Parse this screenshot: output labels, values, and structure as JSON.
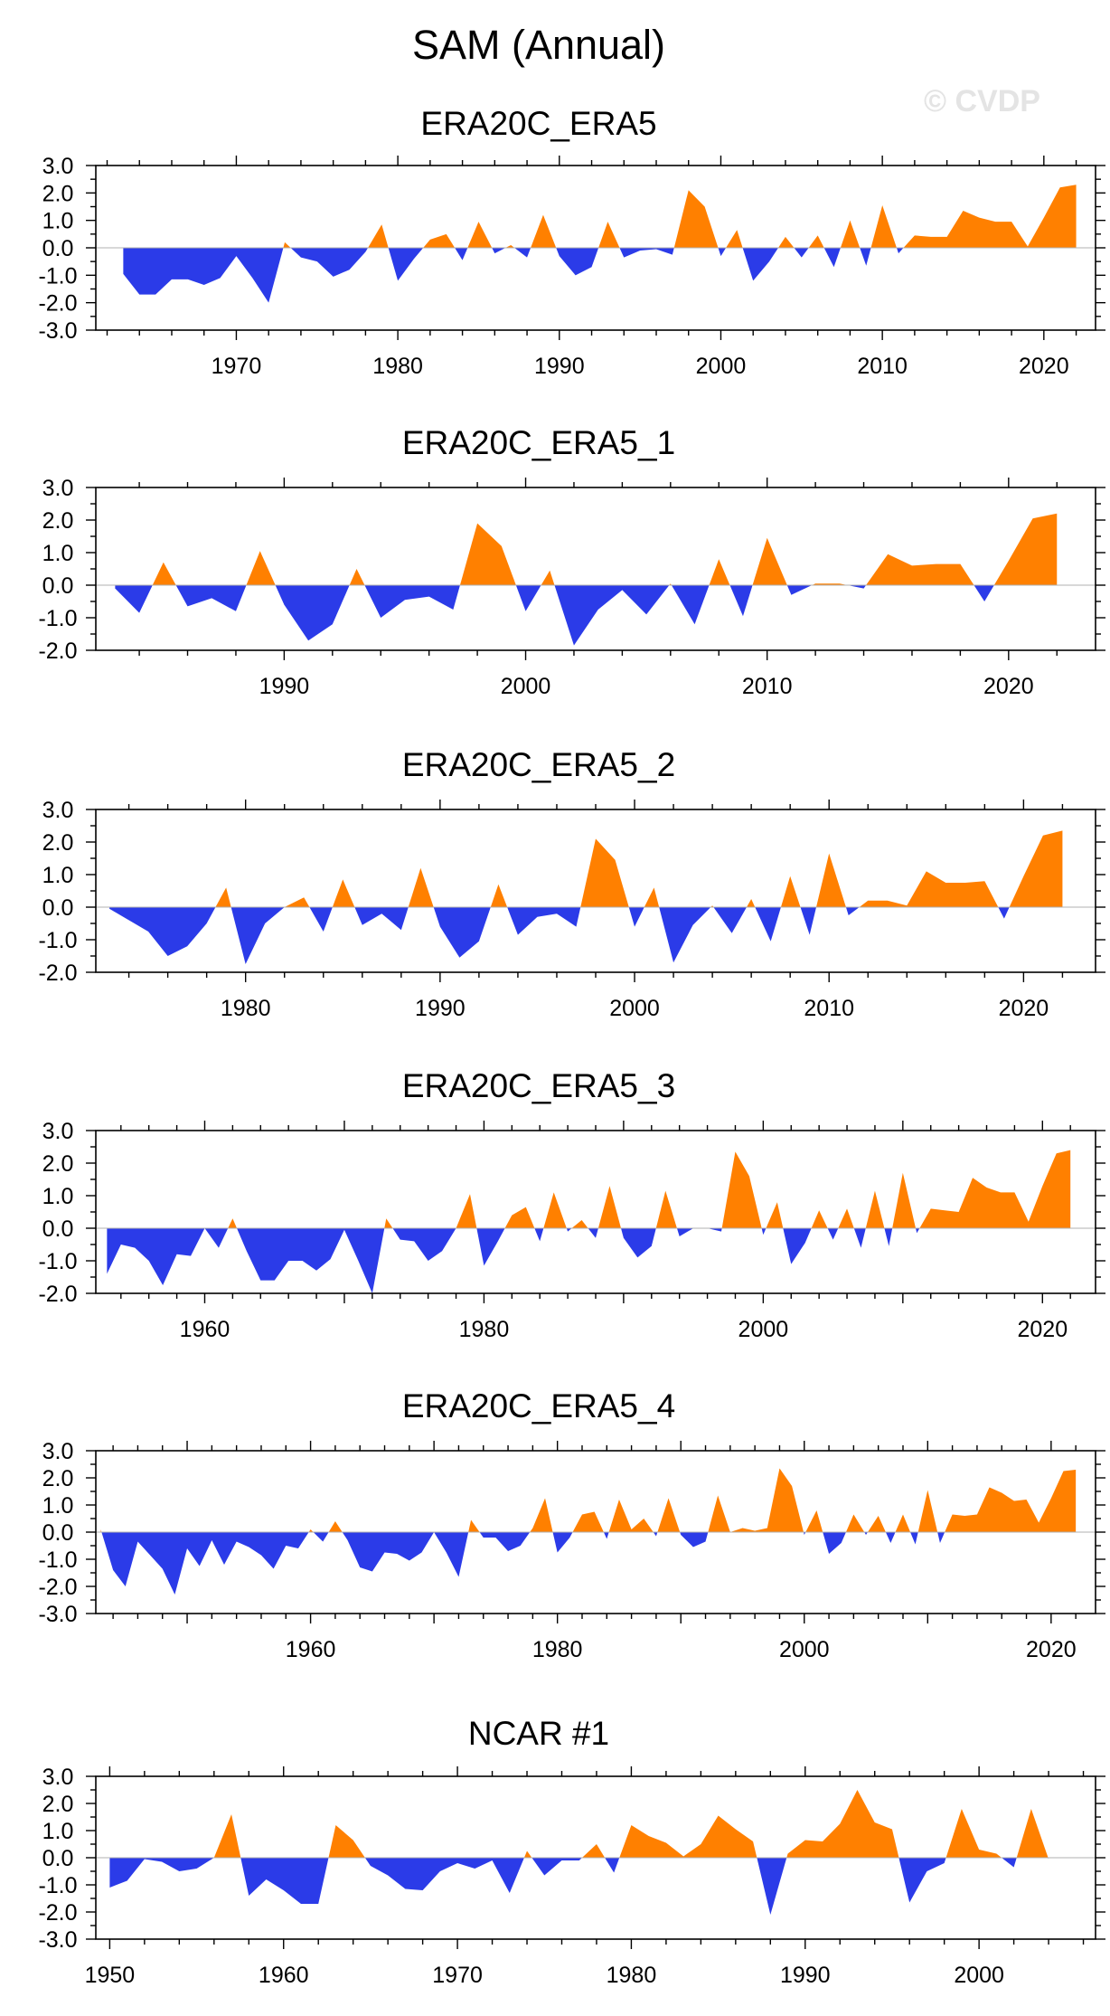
{
  "title": "SAM (Annual)",
  "watermark": "© CVDP",
  "colors": {
    "positive": "#FF8000",
    "negative": "#2B3BE8",
    "axis": "#000000"
  },
  "chart_data": [
    {
      "type": "area",
      "title": "ERA20C_ERA5",
      "x_start": 1963,
      "xlim": [
        1961.3,
        2023.2
      ],
      "ylim": [
        -3.0,
        3.0
      ],
      "yticks": [
        "3.0",
        "2.0",
        "1.0",
        "0.0",
        "-1.0",
        "-2.0",
        "-3.0"
      ],
      "xticks": [
        "1970",
        "1980",
        "1990",
        "2000",
        "2010",
        "2020"
      ],
      "values": [
        -0.95,
        -1.7,
        -1.7,
        -1.15,
        -1.15,
        -1.35,
        -1.1,
        -0.3,
        -1.1,
        -2.0,
        0.2,
        -0.35,
        -0.5,
        -1.05,
        -0.8,
        -0.15,
        0.85,
        -1.2,
        -0.4,
        0.3,
        0.5,
        -0.45,
        0.95,
        -0.2,
        0.1,
        -0.35,
        1.2,
        -0.3,
        -1.0,
        -0.7,
        0.95,
        -0.35,
        -0.1,
        -0.05,
        -0.25,
        2.1,
        1.5,
        -0.3,
        0.65,
        -1.2,
        -0.5,
        0.4,
        -0.35,
        0.45,
        -0.7,
        1.0,
        -0.65,
        1.55,
        -0.2,
        0.45,
        0.4,
        0.4,
        1.35,
        1.1,
        0.95,
        0.95,
        0.05,
        1.1,
        2.2,
        2.3
      ]
    },
    {
      "type": "area",
      "title": "ERA20C_ERA5_1",
      "x_start": 1983,
      "xlim": [
        1982.2,
        2023.6
      ],
      "ylim": [
        -2.0,
        3.0
      ],
      "yticks": [
        "3.0",
        "2.0",
        "1.0",
        "0.0",
        "-1.0",
        "-2.0"
      ],
      "xticks": [
        "1990",
        "2000",
        "2010",
        "2020"
      ],
      "values": [
        -0.1,
        -0.85,
        0.7,
        -0.65,
        -0.4,
        -0.8,
        1.05,
        -0.6,
        -1.7,
        -1.2,
        0.5,
        -1.0,
        -0.45,
        -0.35,
        -0.75,
        1.9,
        1.2,
        -0.8,
        0.45,
        -1.85,
        -0.75,
        -0.15,
        -0.9,
        0.05,
        -1.2,
        0.8,
        -0.95,
        1.45,
        -0.3,
        0.05,
        0.05,
        -0.1,
        0.95,
        0.6,
        0.65,
        0.65,
        -0.5,
        0.75,
        2.05,
        2.2
      ]
    },
    {
      "type": "area",
      "title": "ERA20C_ERA5_2",
      "x_start": 1973,
      "xlim": [
        1972.3,
        2023.7
      ],
      "ylim": [
        -2.0,
        3.0
      ],
      "yticks": [
        "3.0",
        "2.0",
        "1.0",
        "0.0",
        "-1.0",
        "-2.0"
      ],
      "xticks": [
        "1980",
        "1990",
        "2000",
        "2010",
        "2020"
      ],
      "values": [
        -0.05,
        -0.4,
        -0.75,
        -1.5,
        -1.2,
        -0.5,
        0.6,
        -1.75,
        -0.5,
        0.0,
        0.3,
        -0.75,
        0.85,
        -0.55,
        -0.2,
        -0.7,
        1.2,
        -0.6,
        -1.55,
        -1.05,
        0.7,
        -0.85,
        -0.3,
        -0.2,
        -0.6,
        2.1,
        1.45,
        -0.6,
        0.6,
        -1.7,
        -0.55,
        0.05,
        -0.8,
        0.25,
        -1.05,
        0.95,
        -0.85,
        1.65,
        -0.25,
        0.2,
        0.2,
        0.05,
        1.1,
        0.75,
        0.75,
        0.8,
        -0.35,
        0.95,
        2.2,
        2.35
      ]
    },
    {
      "type": "area",
      "title": "ERA20C_ERA5_3",
      "x_start": 1953,
      "xlim": [
        1952.2,
        2023.8
      ],
      "ylim": [
        -2.0,
        3.0
      ],
      "yticks": [
        "3.0",
        "2.0",
        "1.0",
        "0.0",
        "-1.0",
        "-2.0"
      ],
      "xticks": [
        "1960",
        "1980",
        "2000",
        "2020"
      ],
      "values": [
        -1.4,
        -0.5,
        -0.6,
        -1.0,
        -1.75,
        -0.8,
        -0.85,
        0.0,
        -0.6,
        0.3,
        -0.7,
        -1.6,
        -1.6,
        -1.0,
        -1.0,
        -1.3,
        -0.95,
        -0.05,
        -1.0,
        -2.0,
        0.3,
        -0.35,
        -0.4,
        -1.0,
        -0.7,
        0.0,
        1.05,
        -1.15,
        -0.4,
        0.4,
        0.65,
        -0.4,
        1.1,
        -0.1,
        0.25,
        -0.3,
        1.3,
        -0.3,
        -0.9,
        -0.55,
        1.15,
        -0.25,
        0.0,
        0.0,
        -0.1,
        2.35,
        1.6,
        -0.2,
        0.8,
        -1.1,
        -0.45,
        0.55,
        -0.35,
        0.6,
        -0.6,
        1.15,
        -0.55,
        1.7,
        -0.15,
        0.6,
        0.55,
        0.5,
        1.55,
        1.25,
        1.1,
        1.1,
        0.2,
        1.3,
        2.3,
        2.4
      ]
    },
    {
      "type": "area",
      "title": "ERA20C_ERA5_4",
      "x_start": 1943,
      "xlim": [
        1942.6,
        2023.6
      ],
      "ylim": [
        -3.0,
        3.0
      ],
      "yticks": [
        "3.0",
        "2.0",
        "1.0",
        "0.0",
        "-1.0",
        "-2.0",
        "-3.0"
      ],
      "xticks": [
        "1960",
        "1980",
        "2000",
        "2020"
      ],
      "values": [
        0.1,
        -1.4,
        -2.0,
        -0.35,
        -0.85,
        -1.35,
        -2.3,
        -0.6,
        -1.25,
        -0.3,
        -1.2,
        -0.35,
        -0.55,
        -0.85,
        -1.35,
        -0.5,
        -0.6,
        0.1,
        -0.35,
        0.4,
        -0.3,
        -1.3,
        -1.45,
        -0.75,
        -0.8,
        -1.05,
        -0.75,
        0.0,
        -0.75,
        -1.65,
        0.45,
        -0.2,
        -0.2,
        -0.7,
        -0.5,
        0.15,
        1.25,
        -0.75,
        -0.2,
        0.65,
        0.75,
        -0.25,
        1.2,
        0.1,
        0.5,
        -0.15,
        1.25,
        -0.1,
        -0.55,
        -0.35,
        1.35,
        0.0,
        0.15,
        0.05,
        0.15,
        2.35,
        1.7,
        -0.1,
        0.8,
        -0.8,
        -0.4,
        0.65,
        -0.1,
        0.6,
        -0.4,
        0.65,
        -0.45,
        1.55,
        -0.4,
        0.65,
        0.6,
        0.65,
        1.65,
        1.45,
        1.15,
        1.2,
        0.35,
        1.25,
        2.25,
        2.3
      ]
    },
    {
      "type": "area",
      "title": "NCAR #1",
      "x_start": 1950,
      "xlim": [
        1949.2,
        2006.7
      ],
      "ylim": [
        -3.0,
        3.0
      ],
      "yticks": [
        "3.0",
        "2.0",
        "1.0",
        "0.0",
        "-1.0",
        "-2.0",
        "-3.0"
      ],
      "xticks": [
        "1950",
        "1960",
        "1970",
        "1980",
        "1990",
        "2000"
      ],
      "values": [
        -1.1,
        -0.85,
        -0.05,
        -0.15,
        -0.5,
        -0.4,
        0.0,
        1.6,
        -1.4,
        -0.8,
        -1.2,
        -1.7,
        -1.7,
        1.2,
        0.65,
        -0.3,
        -0.65,
        -1.15,
        -1.2,
        -0.5,
        -0.2,
        -0.4,
        -0.1,
        -1.3,
        0.25,
        -0.65,
        -0.1,
        -0.1,
        0.5,
        -0.55,
        1.2,
        0.8,
        0.55,
        0.05,
        0.5,
        1.55,
        1.05,
        0.6,
        -2.1,
        0.15,
        0.65,
        0.6,
        1.25,
        2.5,
        1.3,
        1.05,
        -1.65,
        -0.5,
        -0.2,
        1.8,
        0.3,
        0.15,
        -0.35,
        1.8,
        -0.05
      ]
    }
  ]
}
